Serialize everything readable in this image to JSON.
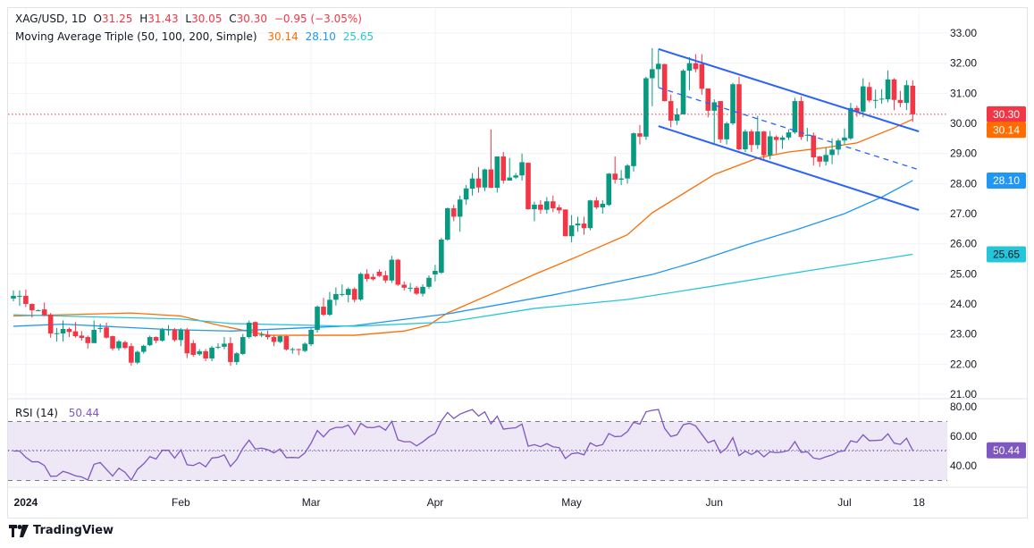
{
  "header": {
    "symbol": "XAG/USD, 1D",
    "open_label": "O",
    "open": "31.25",
    "high_label": "H",
    "high": "31.43",
    "low_label": "L",
    "low": "30.05",
    "close_label": "C",
    "close": "30.30",
    "change": "−0.95 (−3.05%)",
    "ma_title": "Moving Average Triple (50, 100, 200, Simple)",
    "ma50": "30.14",
    "ma100": "28.10",
    "ma200": "25.65"
  },
  "rsi": {
    "title": "RSI (14)",
    "value": "50.44"
  },
  "footer": {
    "brand": "TradingView"
  },
  "colors": {
    "up": "#089981",
    "down": "#f23645",
    "ma50": "#ff6d00",
    "ma100": "#2196f3",
    "ma200": "#26c6da",
    "channel": "#2962ff",
    "rsi": "#7e57c2",
    "rsi_band": "#ede7f6"
  },
  "chart_data": [
    {
      "type": "candlestick",
      "title": "XAG/USD, 1D",
      "ylim": [
        21,
        33
      ],
      "y_ticks": [
        "33.00",
        "32.00",
        "31.00",
        "30.00",
        "29.00",
        "28.00",
        "27.00",
        "26.00",
        "25.00",
        "24.00",
        "23.00",
        "22.00",
        "21.00"
      ],
      "x_ticks": [
        {
          "label": "2024",
          "bar": 2,
          "bold": true
        },
        {
          "label": "Feb",
          "bar": 27
        },
        {
          "label": "Mar",
          "bar": 48
        },
        {
          "label": "Apr",
          "bar": 68
        },
        {
          "label": "May",
          "bar": 90
        },
        {
          "label": "Jun",
          "bar": 113
        },
        {
          "label": "Jul",
          "bar": 134
        },
        {
          "label": "18",
          "bar": 146
        }
      ],
      "grid": true,
      "candles_ohlc": [
        [
          24.18,
          24.45,
          24.09,
          24.27
        ],
        [
          24.27,
          24.45,
          23.94,
          24.27
        ],
        [
          24.27,
          24.48,
          23.9,
          24.0
        ],
        [
          24.0,
          24.02,
          23.55,
          23.79
        ],
        [
          23.79,
          23.82,
          23.76,
          23.79
        ],
        [
          23.82,
          24.05,
          23.6,
          23.62
        ],
        [
          23.65,
          23.7,
          22.88,
          23.02
        ],
        [
          23.03,
          23.2,
          22.75,
          23.03
        ],
        [
          23.02,
          23.45,
          22.75,
          23.17
        ],
        [
          23.17,
          23.22,
          22.9,
          23.07
        ],
        [
          23.09,
          23.4,
          22.88,
          22.93
        ],
        [
          22.95,
          23.1,
          22.78,
          22.87
        ],
        [
          22.9,
          22.95,
          22.52,
          22.7
        ],
        [
          22.7,
          23.45,
          22.7,
          23.14
        ],
        [
          23.18,
          23.35,
          23.05,
          23.2
        ],
        [
          23.22,
          23.38,
          22.85,
          22.88
        ],
        [
          22.93,
          22.95,
          22.45,
          22.52
        ],
        [
          22.53,
          22.8,
          22.45,
          22.76
        ],
        [
          22.73,
          22.78,
          22.5,
          22.54
        ],
        [
          22.6,
          22.7,
          21.95,
          22.05
        ],
        [
          22.05,
          22.45,
          22.0,
          22.41
        ],
        [
          22.41,
          22.65,
          22.35,
          22.61
        ],
        [
          22.63,
          22.95,
          22.6,
          22.9
        ],
        [
          22.9,
          22.92,
          22.7,
          22.78
        ],
        [
          22.78,
          23.2,
          22.75,
          23.15
        ],
        [
          23.15,
          23.3,
          22.95,
          23.15
        ],
        [
          23.15,
          23.2,
          22.75,
          22.8
        ],
        [
          22.8,
          23.2,
          22.6,
          23.15
        ],
        [
          23.15,
          23.2,
          22.2,
          22.36
        ],
        [
          22.7,
          22.8,
          22.25,
          22.31
        ],
        [
          22.33,
          22.5,
          22.28,
          22.43
        ],
        [
          22.43,
          22.5,
          22.1,
          22.19
        ],
        [
          22.19,
          22.6,
          22.1,
          22.55
        ],
        [
          22.58,
          22.7,
          22.5,
          22.58
        ],
        [
          22.58,
          22.9,
          22.5,
          22.68
        ],
        [
          22.7,
          22.9,
          21.95,
          22.07
        ],
        [
          22.07,
          22.4,
          21.98,
          22.36
        ],
        [
          22.34,
          23.0,
          22.3,
          22.9
        ],
        [
          22.9,
          23.45,
          22.85,
          23.38
        ],
        [
          23.4,
          23.42,
          22.9,
          22.93
        ],
        [
          22.98,
          23.08,
          22.9,
          22.98
        ],
        [
          22.98,
          23.12,
          22.82,
          22.9
        ],
        [
          22.9,
          22.95,
          22.6,
          22.74
        ],
        [
          22.74,
          22.95,
          22.7,
          22.93
        ],
        [
          22.93,
          22.95,
          22.45,
          22.49
        ],
        [
          22.5,
          22.55,
          22.35,
          22.5
        ],
        [
          22.5,
          22.52,
          22.3,
          22.48
        ],
        [
          22.44,
          22.72,
          22.4,
          22.68
        ],
        [
          22.66,
          23.2,
          22.6,
          23.14
        ],
        [
          23.14,
          23.95,
          23.05,
          23.91
        ],
        [
          23.91,
          24.2,
          23.6,
          23.64
        ],
        [
          23.64,
          24.4,
          23.6,
          24.14
        ],
        [
          24.14,
          24.55,
          23.95,
          24.33
        ],
        [
          24.33,
          24.65,
          24.25,
          24.33
        ],
        [
          24.3,
          24.55,
          24.05,
          24.5
        ],
        [
          24.5,
          24.55,
          24.05,
          24.14
        ],
        [
          24.15,
          25.05,
          24.1,
          25.0
        ],
        [
          25.0,
          25.15,
          24.75,
          24.83
        ],
        [
          24.9,
          25.0,
          24.78,
          24.82
        ],
        [
          25.07,
          25.15,
          24.9,
          24.93
        ],
        [
          24.95,
          25.1,
          24.7,
          24.78
        ],
        [
          24.78,
          25.6,
          24.7,
          25.47
        ],
        [
          25.47,
          25.5,
          24.6,
          24.64
        ],
        [
          24.64,
          24.75,
          24.45,
          24.54
        ],
        [
          24.54,
          24.7,
          24.4,
          24.54
        ],
        [
          24.54,
          24.6,
          24.3,
          24.34
        ],
        [
          24.34,
          24.65,
          24.25,
          24.57
        ],
        [
          24.57,
          24.95,
          24.5,
          24.87
        ],
        [
          24.98,
          25.3,
          24.75,
          25.1
        ],
        [
          25.04,
          26.2,
          25.0,
          26.14
        ],
        [
          26.14,
          27.2,
          26.1,
          27.18
        ],
        [
          27.18,
          27.3,
          26.75,
          26.9
        ],
        [
          26.9,
          27.6,
          26.4,
          27.47
        ],
        [
          27.47,
          27.95,
          27.3,
          27.84
        ],
        [
          27.83,
          28.35,
          27.6,
          28.17
        ],
        [
          28.17,
          28.55,
          27.7,
          27.87
        ],
        [
          27.87,
          28.5,
          27.75,
          28.47
        ],
        [
          28.47,
          29.8,
          27.85,
          27.86
        ],
        [
          27.86,
          28.9,
          27.7,
          28.9
        ],
        [
          28.9,
          29.05,
          28.0,
          28.1
        ],
        [
          28.1,
          28.85,
          28.1,
          28.2
        ],
        [
          28.2,
          28.35,
          28.15,
          28.27
        ],
        [
          28.27,
          29.0,
          28.1,
          28.71
        ],
        [
          28.69,
          28.7,
          27.13,
          27.15
        ],
        [
          27.15,
          27.4,
          26.75,
          27.3
        ],
        [
          27.3,
          27.45,
          27.0,
          27.13
        ],
        [
          27.13,
          27.55,
          27.0,
          27.41
        ],
        [
          27.41,
          27.6,
          27.05,
          27.18
        ],
        [
          27.21,
          27.3,
          27.0,
          27.11
        ],
        [
          27.14,
          27.14,
          26.25,
          26.25
        ],
        [
          26.25,
          26.95,
          26.05,
          26.61
        ],
        [
          26.61,
          26.9,
          26.4,
          26.67
        ],
        [
          26.67,
          26.9,
          26.3,
          26.52
        ],
        [
          26.52,
          27.46,
          26.45,
          27.44
        ],
        [
          27.44,
          27.55,
          27.15,
          27.21
        ],
        [
          27.21,
          27.45,
          27.0,
          27.33
        ],
        [
          27.29,
          28.35,
          27.25,
          28.33
        ],
        [
          28.33,
          28.9,
          28.0,
          28.13
        ],
        [
          28.13,
          28.45,
          27.95,
          28.17
        ],
        [
          28.17,
          28.65,
          28.0,
          28.6
        ],
        [
          28.58,
          29.7,
          28.4,
          29.67
        ],
        [
          29.67,
          29.95,
          29.3,
          29.56
        ],
        [
          29.56,
          31.55,
          29.45,
          31.5
        ],
        [
          31.5,
          32.5,
          30.57,
          31.8
        ],
        [
          31.8,
          32.45,
          31.2,
          31.98
        ],
        [
          31.97,
          31.98,
          30.73,
          30.74
        ],
        [
          30.74,
          30.96,
          29.87,
          30.09
        ],
        [
          30.09,
          30.5,
          29.95,
          30.3
        ],
        [
          30.3,
          31.8,
          30.3,
          31.75
        ],
        [
          31.75,
          32.2,
          31.1,
          32.0
        ],
        [
          32.0,
          32.3,
          31.7,
          31.8
        ],
        [
          31.97,
          32.3,
          30.95,
          31.15
        ],
        [
          31.16,
          31.16,
          30.2,
          30.42
        ],
        [
          30.42,
          30.8,
          29.3,
          30.7
        ],
        [
          30.74,
          30.74,
          29.35,
          29.47
        ],
        [
          29.47,
          30.05,
          29.3,
          30.0
        ],
        [
          30.0,
          31.35,
          29.95,
          31.3
        ],
        [
          31.3,
          31.55,
          29.1,
          29.14
        ],
        [
          29.14,
          29.8,
          29.05,
          29.73
        ],
        [
          29.73,
          29.8,
          29.05,
          29.28
        ],
        [
          29.28,
          30.25,
          29.15,
          29.73
        ],
        [
          29.73,
          29.75,
          28.75,
          28.94
        ],
        [
          28.94,
          29.75,
          28.8,
          29.57
        ],
        [
          29.55,
          29.6,
          29.0,
          29.45
        ],
        [
          29.45,
          29.6,
          29.15,
          29.53
        ],
        [
          29.53,
          29.8,
          29.45,
          29.7
        ],
        [
          29.7,
          30.85,
          29.65,
          30.74
        ],
        [
          30.74,
          30.9,
          29.45,
          29.55
        ],
        [
          29.6,
          29.85,
          29.4,
          29.62
        ],
        [
          29.6,
          29.7,
          28.6,
          28.87
        ],
        [
          28.9,
          28.92,
          28.55,
          28.73
        ],
        [
          28.73,
          29.2,
          28.6,
          28.95
        ],
        [
          28.95,
          29.5,
          28.65,
          29.13
        ],
        [
          29.13,
          29.5,
          28.95,
          29.43
        ],
        [
          29.43,
          29.83,
          29.3,
          29.53
        ],
        [
          29.5,
          30.68,
          29.45,
          30.51
        ],
        [
          30.51,
          30.59,
          30.22,
          30.39
        ],
        [
          30.39,
          31.5,
          30.2,
          31.23
        ],
        [
          31.21,
          31.37,
          30.7,
          30.76
        ],
        [
          30.78,
          31.12,
          30.5,
          30.78
        ],
        [
          30.8,
          31.14,
          30.65,
          30.82
        ],
        [
          30.8,
          31.76,
          30.7,
          31.46
        ],
        [
          31.46,
          31.5,
          30.44,
          30.78
        ],
        [
          30.78,
          31.08,
          30.54,
          30.68
        ],
        [
          30.68,
          31.43,
          30.44,
          31.27
        ],
        [
          31.25,
          31.43,
          30.05,
          30.3
        ]
      ],
      "last_price": 30.3,
      "moving_averages": [
        {
          "name": "MA 50",
          "value": 30.14,
          "points": [
            [
              0,
              23.6
            ],
            [
              19,
              23.7
            ],
            [
              27,
              23.6
            ],
            [
              33,
              23.3
            ],
            [
              41,
              22.96
            ],
            [
              55,
              22.96
            ],
            [
              63,
              23.1
            ],
            [
              67,
              23.3
            ],
            [
              70,
              23.7
            ],
            [
              77,
              24.33
            ],
            [
              84,
              24.98
            ],
            [
              91,
              25.58
            ],
            [
              99,
              26.3
            ],
            [
              103,
              27.03
            ],
            [
              113,
              28.3
            ],
            [
              120,
              28.85
            ],
            [
              125,
              29.05
            ],
            [
              130,
              29.17
            ],
            [
              136,
              29.35
            ],
            [
              142,
              29.85
            ],
            [
              145,
              30.14
            ]
          ]
        },
        {
          "name": "MA 100",
          "value": 28.1,
          "points": [
            [
              0,
              23.26
            ],
            [
              8,
              23.33
            ],
            [
              25,
              23.15
            ],
            [
              35,
              23.1
            ],
            [
              55,
              23.28
            ],
            [
              70,
              23.67
            ],
            [
              87,
              24.3
            ],
            [
              103,
              24.98
            ],
            [
              110,
              25.4
            ],
            [
              118,
              25.95
            ],
            [
              126,
              26.45
            ],
            [
              134,
              27.0
            ],
            [
              140,
              27.55
            ],
            [
              145,
              28.1
            ]
          ]
        },
        {
          "name": "MA 200",
          "value": 25.65,
          "points": [
            [
              0,
              23.64
            ],
            [
              27,
              23.5
            ],
            [
              35,
              23.35
            ],
            [
              55,
              23.26
            ],
            [
              70,
              23.4
            ],
            [
              84,
              23.85
            ],
            [
              99,
              24.15
            ],
            [
              113,
              24.6
            ],
            [
              128,
              25.1
            ],
            [
              145,
              25.65
            ]
          ]
        }
      ],
      "trend_lines": [
        {
          "role": "channel-upper",
          "style": "solid",
          "points": [
            [
              104,
              32.47
            ],
            [
              146,
              29.73
            ]
          ]
        },
        {
          "role": "channel-middle",
          "style": "dashed",
          "points": [
            [
              104,
              31.19
            ],
            [
              146,
              28.46
            ]
          ]
        },
        {
          "role": "channel-lower",
          "style": "solid",
          "points": [
            [
              104,
              29.91
            ],
            [
              146,
              27.12
            ]
          ]
        }
      ]
    },
    {
      "type": "line",
      "title": "RSI (14)",
      "ylim": [
        25,
        85
      ],
      "y_ticks": [
        "80.00",
        "60.00",
        "40.00"
      ],
      "bands": [
        30,
        70
      ],
      "midline": 50,
      "period": 14,
      "last_value": 50.44
    }
  ]
}
